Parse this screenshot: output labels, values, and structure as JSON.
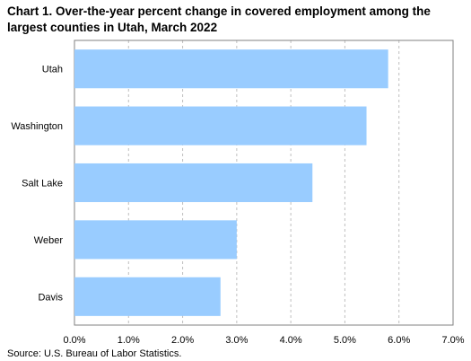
{
  "title": "Chart 1. Over-the-year percent change in covered employment among the largest counties in Utah, March 2022",
  "source": "Source: U.S. Bureau of Labor Statistics.",
  "chart_data": {
    "type": "bar",
    "orientation": "horizontal",
    "title": "Chart 1. Over-the-year percent change in covered employment among the largest counties in Utah, March 2022",
    "categories": [
      "Utah",
      "Washington",
      "Salt Lake",
      "Weber",
      "Davis"
    ],
    "values": [
      5.8,
      5.4,
      4.4,
      3.0,
      2.7
    ],
    "unit": "%",
    "xlim": [
      0,
      7
    ],
    "xticks": [
      "0.0%",
      "1.0%",
      "2.0%",
      "3.0%",
      "4.0%",
      "5.0%",
      "6.0%",
      "7.0%"
    ],
    "grid": "vertical dashed",
    "bar_color": "#99ccff",
    "legend": "none"
  }
}
